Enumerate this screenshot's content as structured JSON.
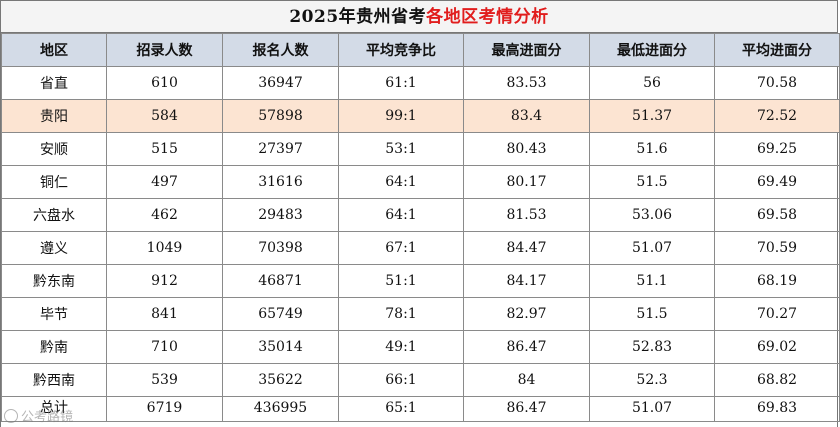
{
  "title": {
    "prefix": "2025年贵州省考",
    "accent": "各地区考情分析"
  },
  "colors": {
    "accent": "#e11d1d",
    "header_bg": "#d3dbe7",
    "highlight_bg": "#fce4d2",
    "title_bg": "#f4f4f4"
  },
  "columns": [
    "地区",
    "招录人数",
    "报名人数",
    "平均竞争比",
    "最高进面分",
    "最低进面分",
    "平均进面分"
  ],
  "rows": [
    [
      "省直",
      "610",
      "36947",
      "61:1",
      "83.53",
      "56",
      "70.58"
    ],
    [
      "贵阳",
      "584",
      "57898",
      "99:1",
      "83.4",
      "51.37",
      "72.52"
    ],
    [
      "安顺",
      "515",
      "27397",
      "53:1",
      "80.43",
      "51.6",
      "69.25"
    ],
    [
      "铜仁",
      "497",
      "31616",
      "64:1",
      "80.17",
      "51.5",
      "69.49"
    ],
    [
      "六盘水",
      "462",
      "29483",
      "64:1",
      "81.53",
      "53.06",
      "69.58"
    ],
    [
      "遵义",
      "1049",
      "70398",
      "67:1",
      "84.47",
      "51.07",
      "70.59"
    ],
    [
      "黔东南",
      "912",
      "46871",
      "51:1",
      "84.17",
      "51.1",
      "68.19"
    ],
    [
      "毕节",
      "841",
      "65749",
      "78:1",
      "82.97",
      "51.5",
      "70.27"
    ],
    [
      "黔南",
      "710",
      "35014",
      "49:1",
      "86.47",
      "52.83",
      "69.02"
    ],
    [
      "黔西南",
      "539",
      "35622",
      "66:1",
      "84",
      "52.3",
      "68.82"
    ],
    [
      "总计",
      "6719",
      "436995",
      "65:1",
      "86.47",
      "51.07",
      "69.83"
    ]
  ],
  "highlight_row": 1,
  "watermark": {
    "text": "公考路镜",
    "icon": "circle-logo-icon"
  }
}
